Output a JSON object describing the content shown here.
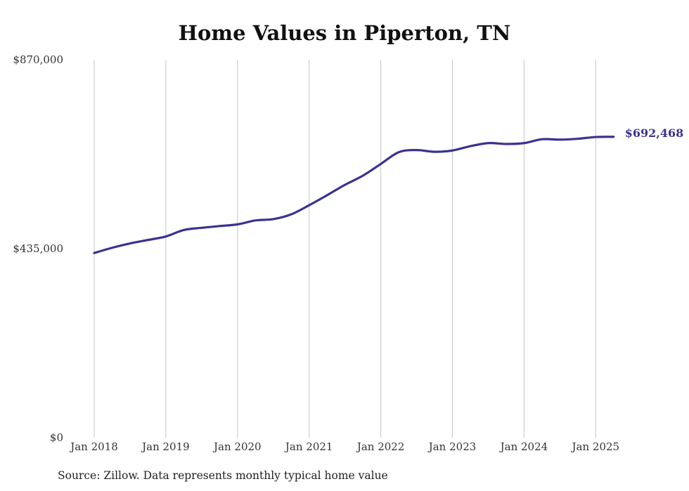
{
  "chart_data": {
    "type": "line",
    "title": "Home Values in Piperton, TN",
    "xlabel": "",
    "ylabel": "",
    "x_ticks": [
      "Jan 2018",
      "Jan 2019",
      "Jan 2020",
      "Jan 2021",
      "Jan 2022",
      "Jan 2023",
      "Jan 2024",
      "Jan 2025"
    ],
    "y_ticks": [
      "$0",
      "$435,000",
      "$870,000"
    ],
    "ylim": [
      0,
      870000
    ],
    "grid": "vertical",
    "line_color": "#3b3291",
    "end_label": "$692,468",
    "series": [
      {
        "x": [
          2018.0,
          2018.25,
          2018.5,
          2018.75,
          2019.0,
          2019.25,
          2019.5,
          2019.75,
          2020.0,
          2020.25,
          2020.5,
          2020.75,
          2021.0,
          2021.25,
          2021.5,
          2021.75,
          2022.0,
          2022.25,
          2022.5,
          2022.75,
          2023.0,
          2023.25,
          2023.5,
          2023.75,
          2024.0,
          2024.25,
          2024.5,
          2024.75,
          2025.0,
          2025.25
        ],
        "values": [
          425000,
          437000,
          447000,
          455000,
          463000,
          478000,
          483000,
          487000,
          491000,
          500000,
          503000,
          514000,
          535000,
          558000,
          582000,
          603000,
          630000,
          657000,
          662000,
          658000,
          661000,
          671000,
          678000,
          676000,
          678000,
          687000,
          686000,
          688000,
          692000,
          692468
        ]
      }
    ]
  },
  "footer": {
    "source": "Source: Zillow. Data represents monthly typical home value"
  }
}
